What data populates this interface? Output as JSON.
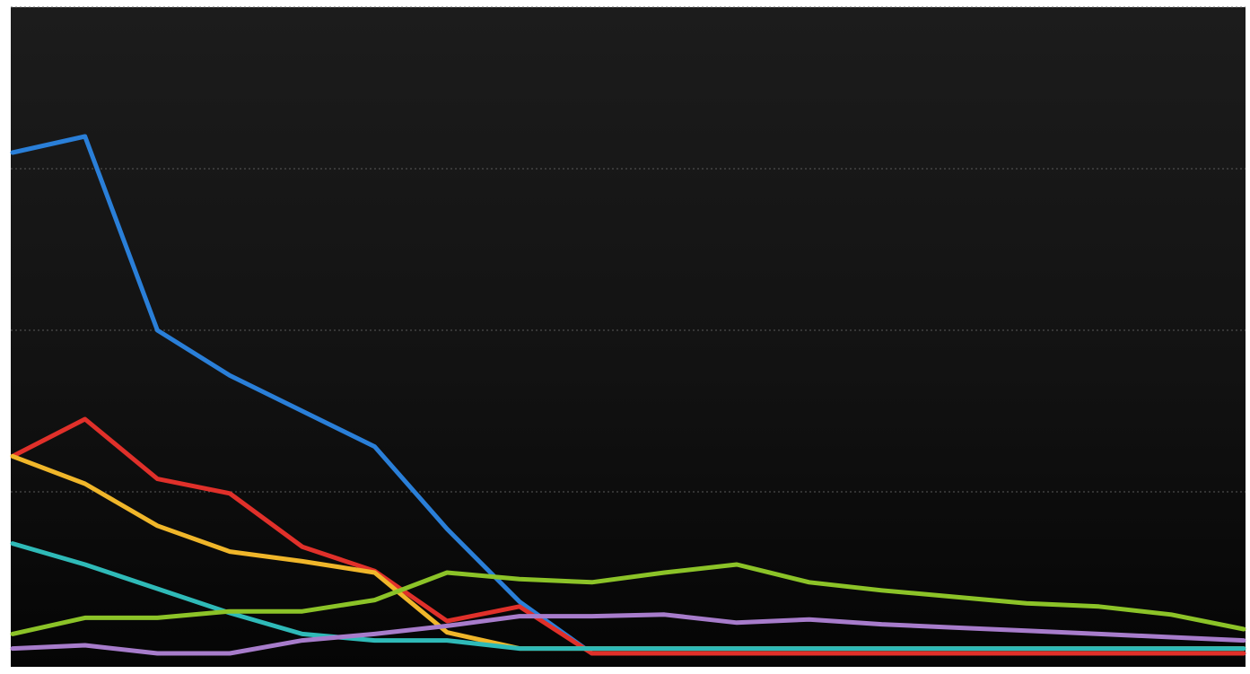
{
  "chart_data": {
    "type": "line",
    "title": "",
    "xlabel": "",
    "ylabel": "",
    "x": [
      0,
      1,
      2,
      3,
      4,
      5,
      6,
      7,
      8,
      9,
      10,
      11,
      12,
      13,
      14,
      15,
      16,
      17
    ],
    "ylim": [
      0,
      4
    ],
    "grid": true,
    "legend": "none",
    "series": [
      {
        "color": "#2a7fd8",
        "values": [
          3.1,
          3.2,
          2.0,
          1.72,
          1.5,
          1.28,
          0.77,
          0.32,
          0.0,
          0.0,
          0.0,
          0.0,
          0.0,
          0.0,
          0.0,
          0.0,
          0.0,
          0.0
        ]
      },
      {
        "color": "#e0302a",
        "values": [
          1.22,
          1.45,
          1.08,
          0.99,
          0.66,
          0.51,
          0.2,
          0.29,
          0.0,
          0.0,
          0.0,
          0.0,
          0.0,
          0.0,
          0.0,
          0.0,
          0.0,
          0.0
        ]
      },
      {
        "color": "#f0b62a",
        "values": [
          1.22,
          1.05,
          0.79,
          0.63,
          0.57,
          0.5,
          0.13,
          0.03,
          0.03,
          0.03,
          0.03,
          0.03,
          0.03,
          0.03,
          0.03,
          0.03,
          0.03,
          0.03
        ]
      },
      {
        "color": "#2fbab8",
        "values": [
          0.68,
          0.55,
          0.4,
          0.25,
          0.12,
          0.08,
          0.08,
          0.03,
          0.03,
          0.03,
          0.03,
          0.03,
          0.03,
          0.03,
          0.03,
          0.03,
          0.03,
          0.03
        ]
      },
      {
        "color": "#8cc328",
        "values": [
          0.12,
          0.22,
          0.22,
          0.26,
          0.26,
          0.33,
          0.5,
          0.46,
          0.44,
          0.5,
          0.55,
          0.44,
          0.39,
          0.35,
          0.31,
          0.29,
          0.24,
          0.15
        ]
      },
      {
        "color": "#a77ccb",
        "values": [
          0.03,
          0.05,
          0.0,
          0.0,
          0.08,
          0.12,
          0.17,
          0.23,
          0.23,
          0.24,
          0.19,
          0.21,
          0.18,
          0.16,
          0.14,
          0.12,
          0.1,
          0.08
        ]
      }
    ]
  }
}
